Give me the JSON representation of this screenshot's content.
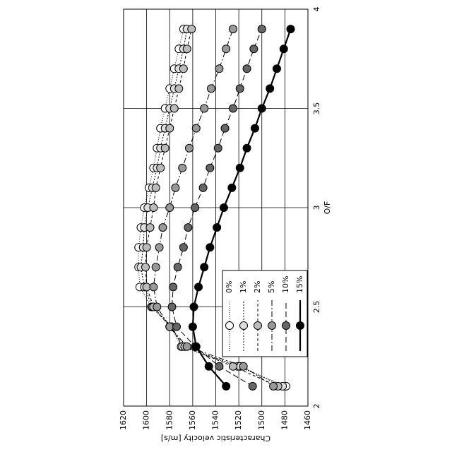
{
  "chart_data": {
    "type": "line",
    "x_label": "O/F",
    "y_label": "Characteristic velocity [m/s]",
    "x": [
      2.1,
      2.2,
      2.3,
      2.4,
      2.5,
      2.6,
      2.7,
      2.8,
      2.9,
      3.0,
      3.1,
      3.2,
      3.3,
      3.4,
      3.5,
      3.6,
      3.7,
      3.8,
      3.9
    ],
    "xlim": [
      2,
      4
    ],
    "xticks": [
      2,
      2.5,
      3,
      3.5,
      4
    ],
    "ylim": [
      1460,
      1620
    ],
    "yticks": [
      1460,
      1480,
      1500,
      1520,
      1540,
      1560,
      1580,
      1600,
      1620
    ],
    "grid": true,
    "legend": "lower left",
    "series": [
      {
        "name": "0%",
        "color": "#ffffff",
        "dash": "1,2",
        "values": [
          1479,
          1521,
          1570,
          1579,
          1596,
          1606,
          1607,
          1607,
          1605,
          1602,
          1598,
          1594,
          1591,
          1588,
          1584,
          1580,
          1576,
          1572,
          1568
        ]
      },
      {
        "name": "1%",
        "color": "#dddddd",
        "dash": "2,2",
        "values": [
          1482,
          1519,
          1569,
          1578,
          1595,
          1602,
          1605,
          1603,
          1602,
          1599,
          1595,
          1591,
          1588,
          1584,
          1580,
          1576,
          1572,
          1568,
          1565
        ]
      },
      {
        "name": "2%",
        "color": "#bbbbbb",
        "dash": "4,3",
        "values": [
          1486,
          1525,
          1567,
          1580,
          1594,
          1600,
          1601,
          1600,
          1597,
          1594,
          1592,
          1588,
          1584,
          1580,
          1576,
          1572,
          1568,
          1565,
          1561
        ]
      },
      {
        "name": "5%",
        "color": "#999999",
        "dash": "8,3,2,3",
        "values": [
          1490,
          1516,
          1565,
          1580,
          1591,
          1594,
          1592,
          1589,
          1586,
          1580,
          1575,
          1569,
          1563,
          1557,
          1550,
          1544,
          1537,
          1531,
          1525
        ]
      },
      {
        "name": "10%",
        "color": "#666666",
        "dash": "8,4",
        "values": [
          1508,
          1537,
          1558,
          1574,
          1578,
          1577,
          1573,
          1568,
          1564,
          1558,
          1551,
          1545,
          1538,
          1532,
          1525,
          1519,
          1513,
          1507,
          1500
        ]
      },
      {
        "name": "15%",
        "color": "#000000",
        "dash": "none",
        "values": [
          1531,
          1546,
          1557,
          1560,
          1559,
          1555,
          1550,
          1545,
          1539,
          1533,
          1526,
          1519,
          1513,
          1506,
          1500,
          1493,
          1487,
          1481,
          1475
        ]
      }
    ]
  }
}
